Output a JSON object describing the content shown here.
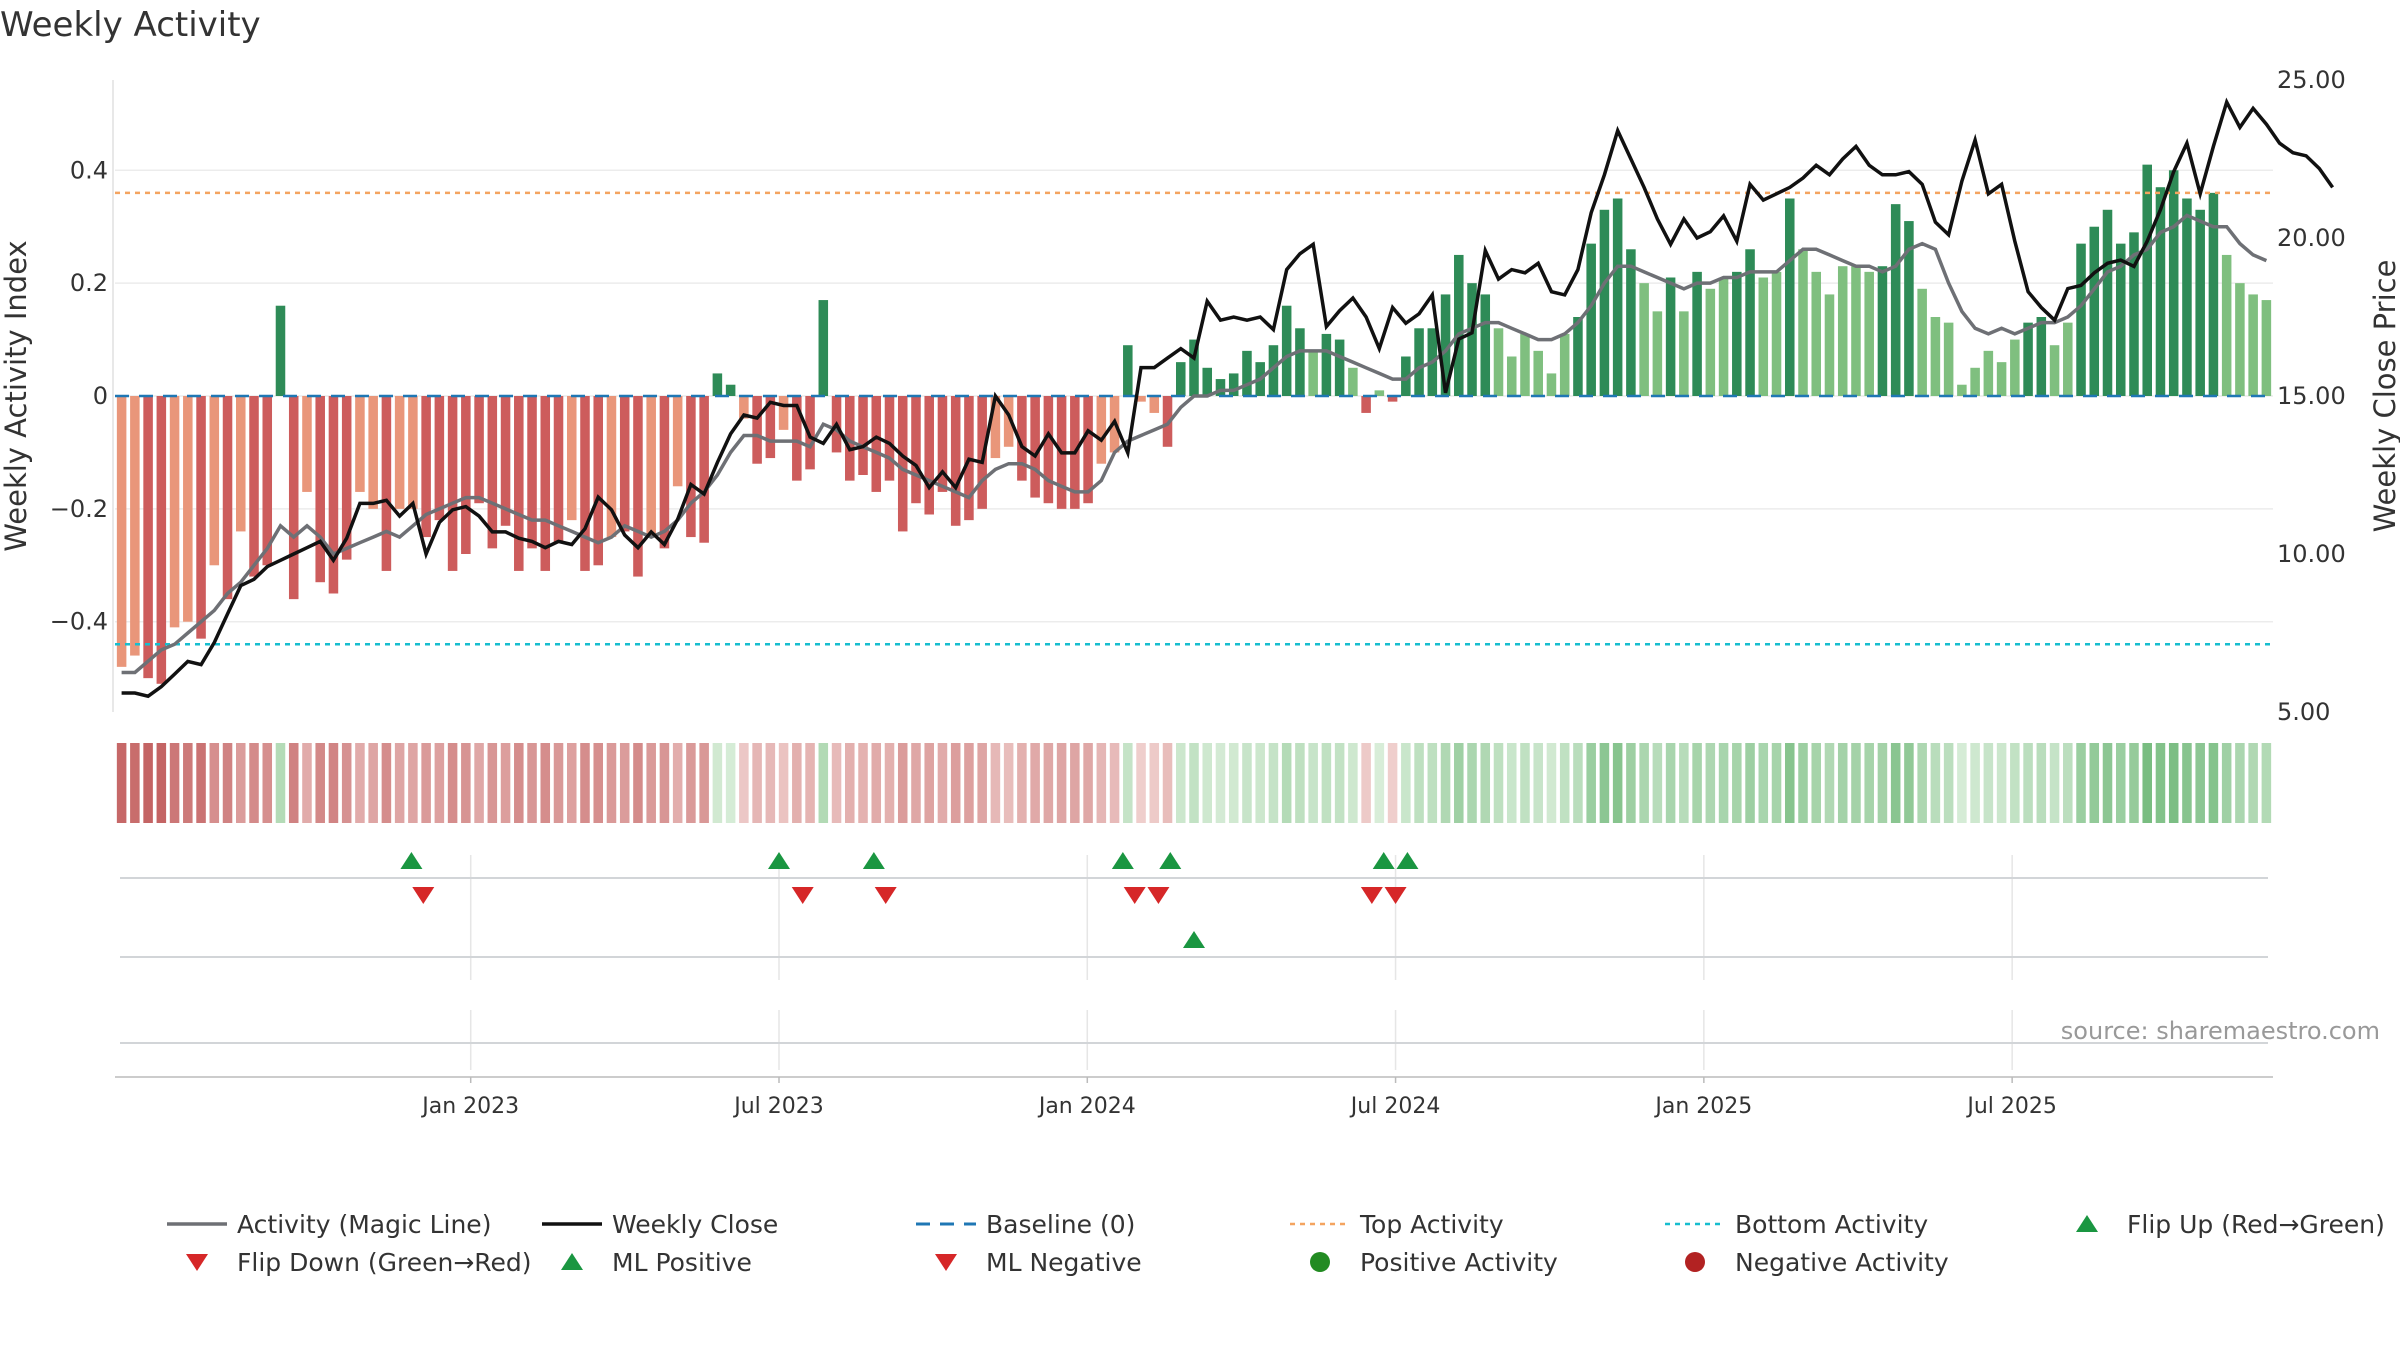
{
  "title": "Weekly Activity",
  "source": "source: sharemaestro.com",
  "colors": {
    "pos_dark": "#2e8b57",
    "pos_light": "#7fbf7f",
    "neg_dark": "#cd5c5c",
    "neg_light": "#e9967a",
    "magic_line": "#6e7075",
    "close_line": "#111111",
    "baseline": "#1f77b4",
    "top": "#f4a460",
    "bottom": "#17becf",
    "flip_up": "#1a9641",
    "flip_down": "#d62728",
    "pos_dot": "#228b22",
    "neg_dot": "#b22222"
  },
  "chart_data": {
    "type": "bar+line",
    "title": "Weekly Activity",
    "ylabel_left": "Weekly Activity Index",
    "ylabel_right": "Weekly Close Price",
    "ylim_left": [
      -0.56,
      0.56
    ],
    "yticks_left": [
      -0.4,
      -0.2,
      0,
      0.2,
      0.4
    ],
    "ytick_labels_left": [
      "−0.4",
      "−0.2",
      "0",
      "0.2",
      "0.4"
    ],
    "ylim_right": [
      5,
      25
    ],
    "yticks_right": [
      5,
      10,
      15,
      20,
      25
    ],
    "ytick_labels_right": [
      "5.00",
      "10.00",
      "15.00",
      "20.00",
      "25.00"
    ],
    "x_start_week": -30,
    "x_end_week": 152,
    "xtick_weeks": [
      0,
      26,
      52,
      78,
      104,
      130
    ],
    "xtick_labels": [
      "Jan 2023",
      "Jul 2023",
      "Jan 2024",
      "Jul 2024",
      "Jan 2025",
      "Jul 2025"
    ],
    "top_activity": 0.36,
    "bottom_activity": -0.44,
    "activity": [
      -0.48,
      -0.46,
      -0.5,
      -0.51,
      -0.41,
      -0.4,
      -0.43,
      -0.3,
      -0.36,
      -0.24,
      -0.32,
      -0.3,
      0.16,
      -0.36,
      -0.17,
      -0.33,
      -0.35,
      -0.29,
      -0.17,
      -0.2,
      -0.31,
      -0.2,
      -0.2,
      -0.25,
      -0.22,
      -0.31,
      -0.28,
      -0.19,
      -0.27,
      -0.23,
      -0.31,
      -0.27,
      -0.31,
      -0.26,
      -0.22,
      -0.31,
      -0.3,
      -0.25,
      -0.24,
      -0.32,
      -0.25,
      -0.27,
      -0.16,
      -0.25,
      -0.26,
      0.04,
      0.02,
      -0.04,
      -0.12,
      -0.11,
      -0.06,
      -0.15,
      -0.13,
      0.17,
      -0.1,
      -0.15,
      -0.14,
      -0.17,
      -0.15,
      -0.24,
      -0.19,
      -0.21,
      -0.17,
      -0.23,
      -0.22,
      -0.2,
      -0.11,
      -0.09,
      -0.15,
      -0.18,
      -0.19,
      -0.2,
      -0.2,
      -0.19,
      -0.12,
      -0.1,
      0.09,
      -0.01,
      -0.03,
      -0.09,
      0.06,
      0.1,
      0.05,
      0.03,
      0.04,
      0.08,
      0.06,
      0.09,
      0.16,
      0.12,
      0.08,
      0.11,
      0.1,
      0.05,
      -0.03,
      0.01,
      -0.01,
      0.07,
      0.12,
      0.12,
      0.18,
      0.25,
      0.2,
      0.18,
      0.12,
      0.07,
      0.11,
      0.08,
      0.04,
      0.11,
      0.14,
      0.27,
      0.33,
      0.35,
      0.26,
      0.2,
      0.15,
      0.21,
      0.15,
      0.22,
      0.19,
      0.21,
      0.22,
      0.26,
      0.21,
      0.22,
      0.35,
      0.26,
      0.22,
      0.18,
      0.23,
      0.23,
      0.22,
      0.23,
      0.34,
      0.31,
      0.19,
      0.14,
      0.13,
      0.02,
      0.05,
      0.08,
      0.06,
      0.1,
      0.13,
      0.14,
      0.09,
      0.13,
      0.27,
      0.3,
      0.33,
      0.27,
      0.29,
      0.41,
      0.37,
      0.4,
      0.35,
      0.33,
      0.36,
      0.25,
      0.2,
      0.18,
      0.17
    ],
    "magic_line": [
      -0.49,
      -0.49,
      -0.47,
      -0.45,
      -0.44,
      -0.42,
      -0.4,
      -0.38,
      -0.35,
      -0.33,
      -0.3,
      -0.27,
      -0.23,
      -0.25,
      -0.23,
      -0.25,
      -0.28,
      -0.27,
      -0.26,
      -0.25,
      -0.24,
      -0.25,
      -0.23,
      -0.21,
      -0.2,
      -0.19,
      -0.18,
      -0.18,
      -0.19,
      -0.2,
      -0.21,
      -0.22,
      -0.22,
      -0.23,
      -0.24,
      -0.25,
      -0.26,
      -0.25,
      -0.23,
      -0.24,
      -0.25,
      -0.24,
      -0.22,
      -0.19,
      -0.17,
      -0.14,
      -0.1,
      -0.07,
      -0.07,
      -0.08,
      -0.08,
      -0.08,
      -0.09,
      -0.05,
      -0.06,
      -0.08,
      -0.09,
      -0.1,
      -0.11,
      -0.13,
      -0.14,
      -0.15,
      -0.16,
      -0.17,
      -0.18,
      -0.15,
      -0.13,
      -0.12,
      -0.12,
      -0.13,
      -0.15,
      -0.16,
      -0.17,
      -0.17,
      -0.15,
      -0.1,
      -0.08,
      -0.07,
      -0.06,
      -0.05,
      -0.02,
      0.0,
      0.0,
      0.01,
      0.01,
      0.02,
      0.03,
      0.05,
      0.07,
      0.08,
      0.08,
      0.08,
      0.07,
      0.06,
      0.05,
      0.04,
      0.03,
      0.03,
      0.05,
      0.06,
      0.08,
      0.11,
      0.12,
      0.13,
      0.13,
      0.12,
      0.11,
      0.1,
      0.1,
      0.11,
      0.13,
      0.16,
      0.2,
      0.23,
      0.23,
      0.22,
      0.21,
      0.2,
      0.19,
      0.2,
      0.2,
      0.21,
      0.21,
      0.22,
      0.22,
      0.22,
      0.24,
      0.26,
      0.26,
      0.25,
      0.24,
      0.23,
      0.23,
      0.22,
      0.23,
      0.26,
      0.27,
      0.26,
      0.2,
      0.15,
      0.12,
      0.11,
      0.12,
      0.11,
      0.12,
      0.13,
      0.13,
      0.14,
      0.16,
      0.19,
      0.22,
      0.23,
      0.25,
      0.26,
      0.29,
      0.3,
      0.32,
      0.31,
      0.3,
      0.3,
      0.27,
      0.25,
      0.24
    ],
    "weekly_close": [
      5.6,
      5.6,
      5.5,
      5.8,
      6.2,
      6.6,
      6.5,
      7.2,
      8.1,
      9.0,
      9.2,
      9.6,
      9.8,
      10.0,
      10.2,
      10.4,
      9.8,
      10.5,
      11.6,
      11.6,
      11.7,
      11.2,
      11.6,
      10.0,
      11.0,
      11.4,
      11.5,
      11.2,
      10.7,
      10.7,
      10.5,
      10.4,
      10.2,
      10.4,
      10.3,
      10.8,
      11.8,
      11.4,
      10.6,
      10.2,
      10.7,
      10.3,
      11.1,
      12.2,
      11.9,
      12.9,
      13.8,
      14.4,
      14.3,
      14.8,
      14.7,
      14.7,
      13.7,
      13.5,
      14.1,
      13.3,
      13.4,
      13.7,
      13.5,
      13.1,
      12.8,
      12.1,
      12.6,
      12.1,
      13.0,
      12.9,
      15.0,
      14.4,
      13.4,
      13.1,
      13.8,
      13.2,
      13.2,
      13.9,
      13.6,
      14.2,
      13.2,
      15.9,
      15.9,
      16.2,
      16.5,
      16.2,
      18.0,
      17.4,
      17.5,
      17.4,
      17.5,
      17.1,
      19.0,
      19.5,
      19.8,
      17.2,
      17.7,
      18.1,
      17.5,
      16.5,
      17.8,
      17.3,
      17.6,
      18.2,
      15.1,
      16.8,
      17.0,
      19.6,
      18.7,
      19.0,
      18.9,
      19.2,
      18.3,
      18.2,
      19.0,
      20.8,
      22.0,
      23.4,
      22.5,
      21.6,
      20.6,
      19.8,
      20.6,
      20.0,
      20.2,
      20.7,
      19.9,
      21.7,
      21.2,
      21.4,
      21.6,
      21.9,
      22.3,
      22.0,
      22.5,
      22.9,
      22.3,
      22.0,
      22.0,
      22.1,
      21.7,
      20.5,
      20.1,
      21.8,
      23.1,
      21.4,
      21.7,
      19.9,
      18.3,
      17.8,
      17.4,
      18.4,
      18.5,
      18.9,
      19.2,
      19.3,
      19.1,
      19.9,
      20.9,
      22.1,
      23.0,
      21.4,
      22.9,
      24.3,
      23.5,
      24.1,
      23.6,
      23.0,
      22.7,
      22.6,
      22.2,
      21.6
    ],
    "flip_up_weeks": [
      -5,
      26,
      34,
      55,
      59,
      77,
      79
    ],
    "flip_down_weeks": [
      -4,
      28,
      35,
      56,
      58,
      76,
      78
    ],
    "ml_positive_weeks": [
      61
    ],
    "ml_negative_weeks": [],
    "legend": [
      "Activity (Magic Line)",
      "Weekly Close",
      "Baseline (0)",
      "Top Activity",
      "Bottom Activity",
      "Flip Up (Red→Green)",
      "Flip Down (Green→Red)",
      "ML Positive",
      "ML Negative",
      "Positive Activity",
      "Negative Activity"
    ]
  }
}
